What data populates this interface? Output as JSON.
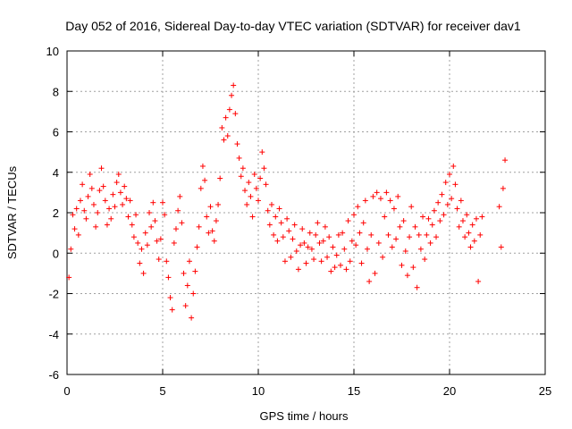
{
  "chart_data": {
    "type": "scatter",
    "title": "Day 052 of 2016, Sidereal Day-to-day VTEC variation (SDTVAR) for receiver dav1",
    "xlabel": "GPS time / hours",
    "ylabel": "SDTVAR / TECUs",
    "xlim": [
      0,
      25
    ],
    "ylim": [
      -6,
      10
    ],
    "x_ticks": [
      "0",
      "5",
      "10",
      "15",
      "20",
      "25"
    ],
    "y_ticks": [
      "-6",
      "-4",
      "-2",
      "0",
      "2",
      "4",
      "6",
      "8",
      "10"
    ],
    "grid": true,
    "marker": "+",
    "color": "#ff0000",
    "series": [
      {
        "name": "dav1",
        "points": [
          [
            0.1,
            -1.2
          ],
          [
            0.2,
            0.2
          ],
          [
            0.3,
            1.9
          ],
          [
            0.4,
            1.2
          ],
          [
            0.5,
            2.2
          ],
          [
            0.6,
            0.9
          ],
          [
            0.7,
            2.6
          ],
          [
            0.8,
            3.4
          ],
          [
            0.9,
            2.1
          ],
          [
            1.0,
            1.7
          ],
          [
            1.1,
            2.8
          ],
          [
            1.2,
            3.9
          ],
          [
            1.3,
            3.2
          ],
          [
            1.4,
            2.4
          ],
          [
            1.5,
            1.3
          ],
          [
            1.6,
            2.0
          ],
          [
            1.7,
            3.1
          ],
          [
            1.8,
            4.2
          ],
          [
            1.9,
            3.3
          ],
          [
            2.0,
            2.6
          ],
          [
            2.1,
            1.4
          ],
          [
            2.2,
            2.2
          ],
          [
            2.3,
            1.7
          ],
          [
            2.4,
            2.9
          ],
          [
            2.5,
            2.3
          ],
          [
            2.6,
            3.5
          ],
          [
            2.7,
            3.9
          ],
          [
            2.8,
            3.0
          ],
          [
            2.9,
            2.4
          ],
          [
            3.0,
            3.3
          ],
          [
            3.1,
            2.7
          ],
          [
            3.2,
            1.8
          ],
          [
            3.3,
            2.6
          ],
          [
            3.4,
            1.4
          ],
          [
            3.5,
            0.8
          ],
          [
            3.6,
            1.9
          ],
          [
            3.7,
            0.5
          ],
          [
            3.8,
            -0.5
          ],
          [
            3.9,
            0.2
          ],
          [
            4.0,
            -1.0
          ],
          [
            4.1,
            1.0
          ],
          [
            4.2,
            0.4
          ],
          [
            4.3,
            2.0
          ],
          [
            4.4,
            1.3
          ],
          [
            4.5,
            2.5
          ],
          [
            4.6,
            1.6
          ],
          [
            4.7,
            0.6
          ],
          [
            4.8,
            -0.3
          ],
          [
            4.9,
            0.7
          ],
          [
            5.0,
            2.5
          ],
          [
            5.1,
            1.9
          ],
          [
            5.2,
            -0.4
          ],
          [
            5.3,
            -1.2
          ],
          [
            5.4,
            -2.2
          ],
          [
            5.5,
            -2.8
          ],
          [
            5.6,
            0.5
          ],
          [
            5.7,
            1.2
          ],
          [
            5.8,
            2.1
          ],
          [
            5.9,
            2.8
          ],
          [
            6.0,
            1.5
          ],
          [
            6.1,
            -1.0
          ],
          [
            6.2,
            -2.6
          ],
          [
            6.3,
            -1.6
          ],
          [
            6.4,
            -0.4
          ],
          [
            6.5,
            -3.2
          ],
          [
            6.6,
            -2.0
          ],
          [
            6.7,
            -0.9
          ],
          [
            6.8,
            0.3
          ],
          [
            6.9,
            1.3
          ],
          [
            7.0,
            3.2
          ],
          [
            7.1,
            4.3
          ],
          [
            7.2,
            3.6
          ],
          [
            7.3,
            1.8
          ],
          [
            7.4,
            1.0
          ],
          [
            7.5,
            2.3
          ],
          [
            7.6,
            1.1
          ],
          [
            7.7,
            0.6
          ],
          [
            7.8,
            1.6
          ],
          [
            7.9,
            2.4
          ],
          [
            8.0,
            3.7
          ],
          [
            8.1,
            6.2
          ],
          [
            8.2,
            5.6
          ],
          [
            8.3,
            6.7
          ],
          [
            8.4,
            5.8
          ],
          [
            8.5,
            7.1
          ],
          [
            8.6,
            7.8
          ],
          [
            8.7,
            8.3
          ],
          [
            8.8,
            6.9
          ],
          [
            8.9,
            5.4
          ],
          [
            9.0,
            4.7
          ],
          [
            9.1,
            3.8
          ],
          [
            9.2,
            4.2
          ],
          [
            9.3,
            3.1
          ],
          [
            9.4,
            2.4
          ],
          [
            9.5,
            3.5
          ],
          [
            9.6,
            2.8
          ],
          [
            9.7,
            1.8
          ],
          [
            9.8,
            3.9
          ],
          [
            9.9,
            3.2
          ],
          [
            10.0,
            2.6
          ],
          [
            10.1,
            3.7
          ],
          [
            10.2,
            5.0
          ],
          [
            10.3,
            4.2
          ],
          [
            10.4,
            3.4
          ],
          [
            10.5,
            2.1
          ],
          [
            10.6,
            1.4
          ],
          [
            10.7,
            2.4
          ],
          [
            10.8,
            0.9
          ],
          [
            10.9,
            1.8
          ],
          [
            11.0,
            0.6
          ],
          [
            11.1,
            2.2
          ],
          [
            11.2,
            1.5
          ],
          [
            11.3,
            0.8
          ],
          [
            11.4,
            -0.4
          ],
          [
            11.5,
            1.7
          ],
          [
            11.6,
            1.1
          ],
          [
            11.7,
            -0.2
          ],
          [
            11.8,
            0.7
          ],
          [
            11.9,
            1.4
          ],
          [
            12.0,
            0.1
          ],
          [
            12.1,
            -0.8
          ],
          [
            12.2,
            0.4
          ],
          [
            12.3,
            1.2
          ],
          [
            12.4,
            0.5
          ],
          [
            12.5,
            -0.5
          ],
          [
            12.6,
            0.3
          ],
          [
            12.7,
            1.0
          ],
          [
            12.8,
            0.2
          ],
          [
            12.9,
            -0.3
          ],
          [
            13.0,
            0.9
          ],
          [
            13.1,
            1.5
          ],
          [
            13.2,
            0.5
          ],
          [
            13.3,
            -0.4
          ],
          [
            13.4,
            0.6
          ],
          [
            13.5,
            1.3
          ],
          [
            13.6,
            -0.2
          ],
          [
            13.7,
            0.8
          ],
          [
            13.8,
            -0.9
          ],
          [
            13.9,
            0.3
          ],
          [
            14.0,
            -0.7
          ],
          [
            14.1,
            -0.1
          ],
          [
            14.2,
            0.9
          ],
          [
            14.3,
            -0.6
          ],
          [
            14.4,
            1.0
          ],
          [
            14.5,
            0.2
          ],
          [
            14.6,
            -0.8
          ],
          [
            14.7,
            1.6
          ],
          [
            14.8,
            -0.4
          ],
          [
            14.9,
            0.6
          ],
          [
            15.0,
            1.9
          ],
          [
            15.1,
            0.4
          ],
          [
            15.2,
            2.3
          ],
          [
            15.3,
            1.0
          ],
          [
            15.4,
            -0.5
          ],
          [
            15.5,
            1.5
          ],
          [
            15.6,
            2.6
          ],
          [
            15.7,
            0.2
          ],
          [
            15.8,
            -1.4
          ],
          [
            15.9,
            0.9
          ],
          [
            16.0,
            2.8
          ],
          [
            16.1,
            -1.0
          ],
          [
            16.2,
            3.0
          ],
          [
            16.3,
            0.5
          ],
          [
            16.4,
            2.7
          ],
          [
            16.5,
            -0.2
          ],
          [
            16.6,
            1.8
          ],
          [
            16.7,
            3.0
          ],
          [
            16.8,
            0.9
          ],
          [
            16.9,
            2.6
          ],
          [
            17.0,
            0.3
          ],
          [
            17.1,
            2.2
          ],
          [
            17.2,
            0.7
          ],
          [
            17.3,
            2.8
          ],
          [
            17.4,
            1.3
          ],
          [
            17.5,
            -0.6
          ],
          [
            17.6,
            1.6
          ],
          [
            17.7,
            0.1
          ],
          [
            17.8,
            -1.1
          ],
          [
            17.9,
            0.8
          ],
          [
            18.0,
            2.3
          ],
          [
            18.1,
            -0.7
          ],
          [
            18.2,
            1.3
          ],
          [
            18.3,
            -1.7
          ],
          [
            18.4,
            0.9
          ],
          [
            18.5,
            0.2
          ],
          [
            18.6,
            1.8
          ],
          [
            18.7,
            -0.3
          ],
          [
            18.8,
            0.9
          ],
          [
            18.9,
            1.7
          ],
          [
            19.0,
            0.5
          ],
          [
            19.1,
            1.4
          ],
          [
            19.2,
            2.1
          ],
          [
            19.3,
            0.8
          ],
          [
            19.4,
            2.5
          ],
          [
            19.5,
            1.6
          ],
          [
            19.6,
            2.9
          ],
          [
            19.7,
            1.9
          ],
          [
            19.8,
            3.5
          ],
          [
            19.9,
            2.4
          ],
          [
            20.0,
            3.9
          ],
          [
            20.1,
            2.7
          ],
          [
            20.2,
            4.3
          ],
          [
            20.3,
            3.4
          ],
          [
            20.4,
            2.2
          ],
          [
            20.5,
            1.3
          ],
          [
            20.6,
            2.6
          ],
          [
            20.7,
            1.6
          ],
          [
            20.8,
            0.8
          ],
          [
            20.9,
            1.9
          ],
          [
            21.0,
            1.0
          ],
          [
            21.1,
            0.3
          ],
          [
            21.2,
            1.4
          ],
          [
            21.3,
            0.6
          ],
          [
            21.4,
            1.7
          ],
          [
            21.5,
            -1.4
          ],
          [
            21.6,
            0.9
          ],
          [
            21.7,
            1.8
          ],
          [
            22.6,
            2.3
          ],
          [
            22.7,
            0.3
          ],
          [
            22.8,
            3.2
          ],
          [
            22.9,
            4.6
          ]
        ]
      }
    ]
  }
}
